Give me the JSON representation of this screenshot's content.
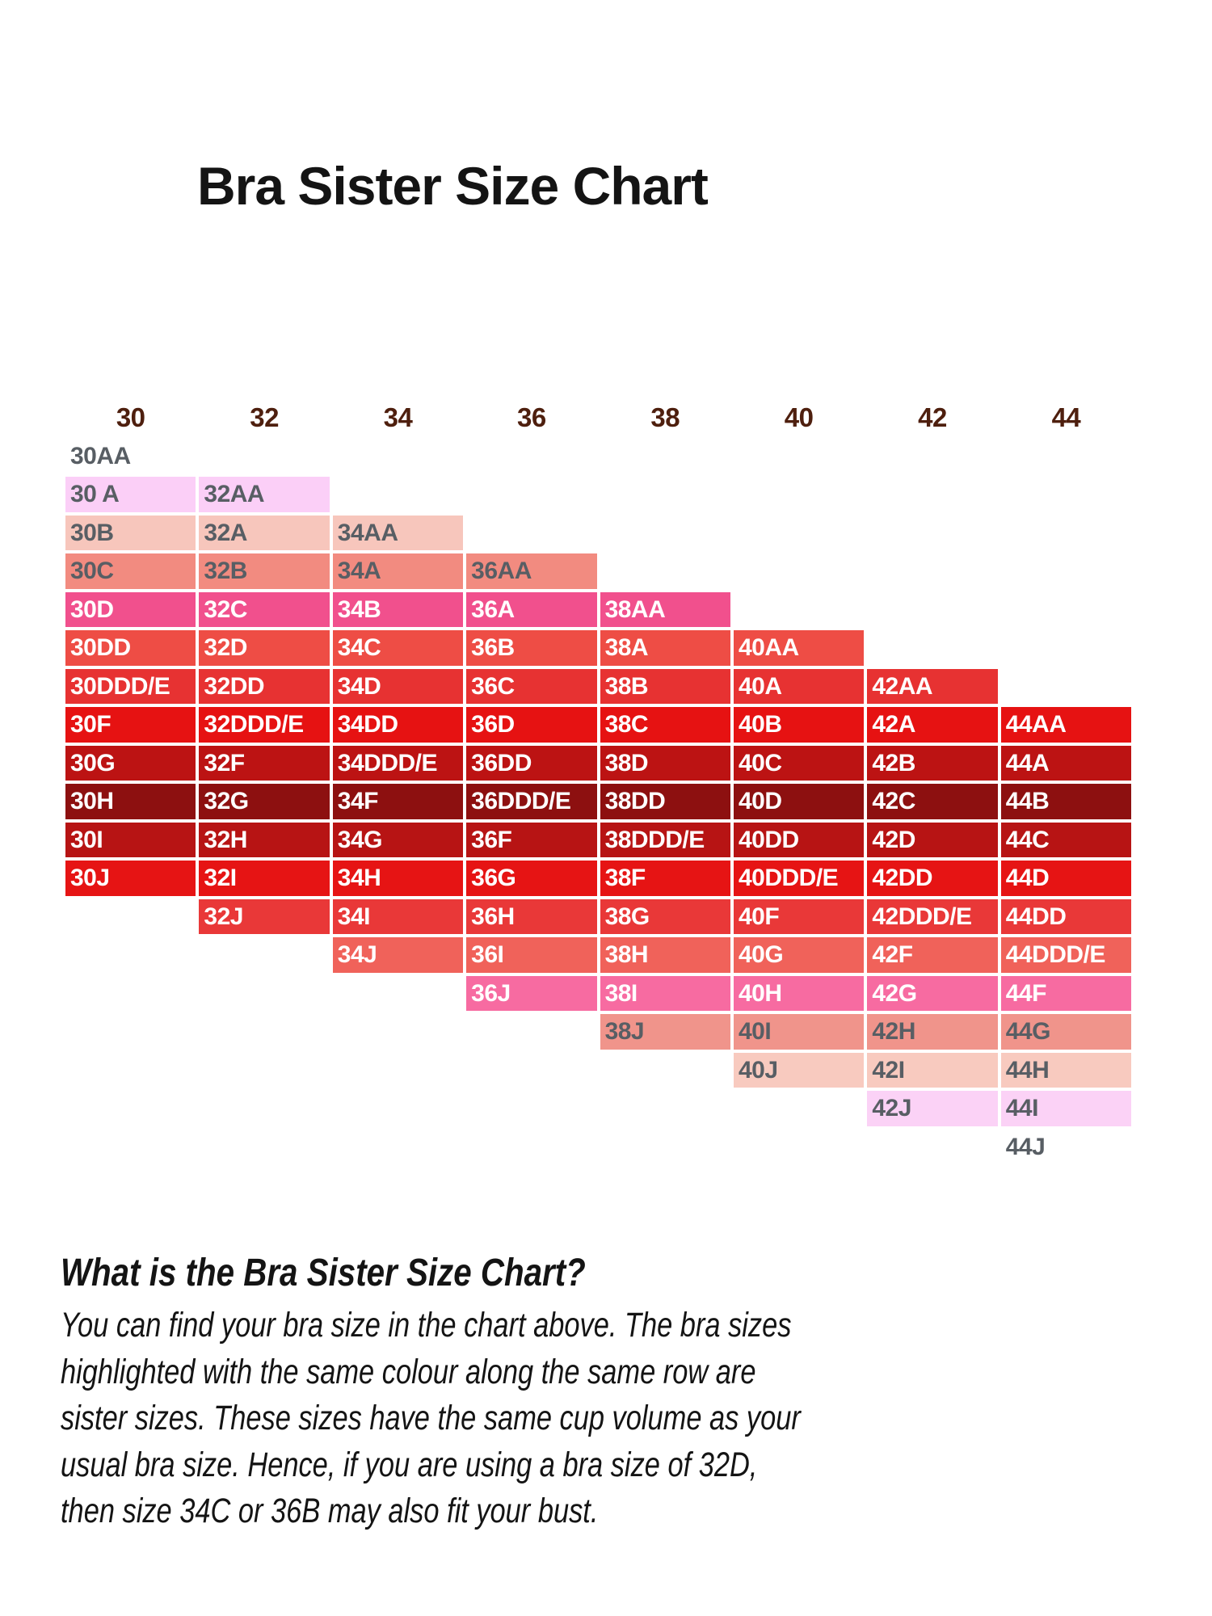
{
  "title": "Bra Sister Size Chart",
  "chart_data": {
    "type": "table",
    "title": "Bra Sister Size Chart",
    "band_headers": [
      "30",
      "32",
      "34",
      "36",
      "38",
      "40",
      "42",
      "44"
    ],
    "cup_order": [
      "AA",
      "A",
      "B",
      "C",
      "D",
      "DD",
      "DDD/E",
      "F",
      "G",
      "H",
      "I",
      "J"
    ],
    "header_text_color": "#4e1f0e",
    "gray_text_color": "#585e64",
    "white_text_color": "#ffffff",
    "rows": [
      {
        "cells": [
          "30AA"
        ],
        "bg": "",
        "text_color": "#585e64"
      },
      {
        "cells": [
          "30 A",
          "32AA"
        ],
        "bg": "#fbcff7",
        "text_color": "#585e64"
      },
      {
        "cells": [
          "30B",
          "32A",
          "34AA"
        ],
        "bg": "#f7c6bc",
        "text_color": "#585e64"
      },
      {
        "cells": [
          "30C",
          "32B",
          "34A",
          "36AA"
        ],
        "bg": "#f28b80",
        "text_color": "#585e64"
      },
      {
        "cells": [
          "30D",
          "32C",
          "34B",
          "36A",
          "38AA"
        ],
        "bg": "#f1508d",
        "text_color": "#ffffff"
      },
      {
        "cells": [
          "30DD",
          "32D",
          "34C",
          "36B",
          "38A",
          "40AA"
        ],
        "bg": "#ee4d45",
        "text_color": "#ffffff"
      },
      {
        "cells": [
          "30DDD/E",
          "32DD",
          "34D",
          "36C",
          "38B",
          "40A",
          "42AA"
        ],
        "bg": "#e73232",
        "text_color": "#ffffff"
      },
      {
        "cells": [
          "30F",
          "32DDD/E",
          "34DD",
          "36D",
          "38C",
          "40B",
          "42A",
          "44AA"
        ],
        "bg": "#e61212",
        "text_color": "#ffffff"
      },
      {
        "cells": [
          "30G",
          "32F",
          "34DDD/E",
          "36DD",
          "38D",
          "40C",
          "42B",
          "44A"
        ],
        "bg": "#bc1313",
        "text_color": "#ffffff"
      },
      {
        "cells": [
          "30H",
          "32G",
          "34F",
          "36DDD/E",
          "38DD",
          "40D",
          "42C",
          "44B"
        ],
        "bg": "#8d1010",
        "text_color": "#ffffff"
      },
      {
        "cells": [
          "30I",
          "32H",
          "34G",
          "36F",
          "38DDD/E",
          "40DD",
          "42D",
          "44C"
        ],
        "bg": "#b71414",
        "text_color": "#ffffff"
      },
      {
        "cells": [
          "30J",
          "32I",
          "34H",
          "36G",
          "38F",
          "40DDD/E",
          "42DD",
          "44D"
        ],
        "bg": "#e61414",
        "text_color": "#ffffff"
      },
      {
        "cells": [
          "32J",
          "34I",
          "36H",
          "38G",
          "40F",
          "42DDD/E",
          "44DD"
        ],
        "bg": "#e93838",
        "text_color": "#ffffff"
      },
      {
        "cells": [
          "34J",
          "36I",
          "38H",
          "40G",
          "42F",
          "44DDD/E"
        ],
        "bg": "#f0625a",
        "text_color": "#ffffff"
      },
      {
        "cells": [
          "36J",
          "38I",
          "40H",
          "42G",
          "44F"
        ],
        "bg": "#f76ba1",
        "text_color": "#ffffff"
      },
      {
        "cells": [
          "38J",
          "40I",
          "42H",
          "44G"
        ],
        "bg": "#f0948b",
        "text_color": "#585e64"
      },
      {
        "cells": [
          "40J",
          "42I",
          "44H"
        ],
        "bg": "#f8cabf",
        "text_color": "#585e64"
      },
      {
        "cells": [
          "42J",
          "44I"
        ],
        "bg": "#fbd2f6",
        "text_color": "#585e64"
      },
      {
        "cells": [
          "44J"
        ],
        "bg": "",
        "text_color": "#585e64"
      }
    ]
  },
  "footer": {
    "heading": "What is the Bra Sister Size Chart?",
    "lines": [
      "You can find your bra size in the chart above. The bra sizes",
      "highlighted with the same colour along the same row are",
      "sister sizes. These sizes have the same cup volume as your",
      "usual bra size. Hence, if you are using a bra size of 32D,",
      "then size 34C or 36B may also fit your bust."
    ]
  }
}
